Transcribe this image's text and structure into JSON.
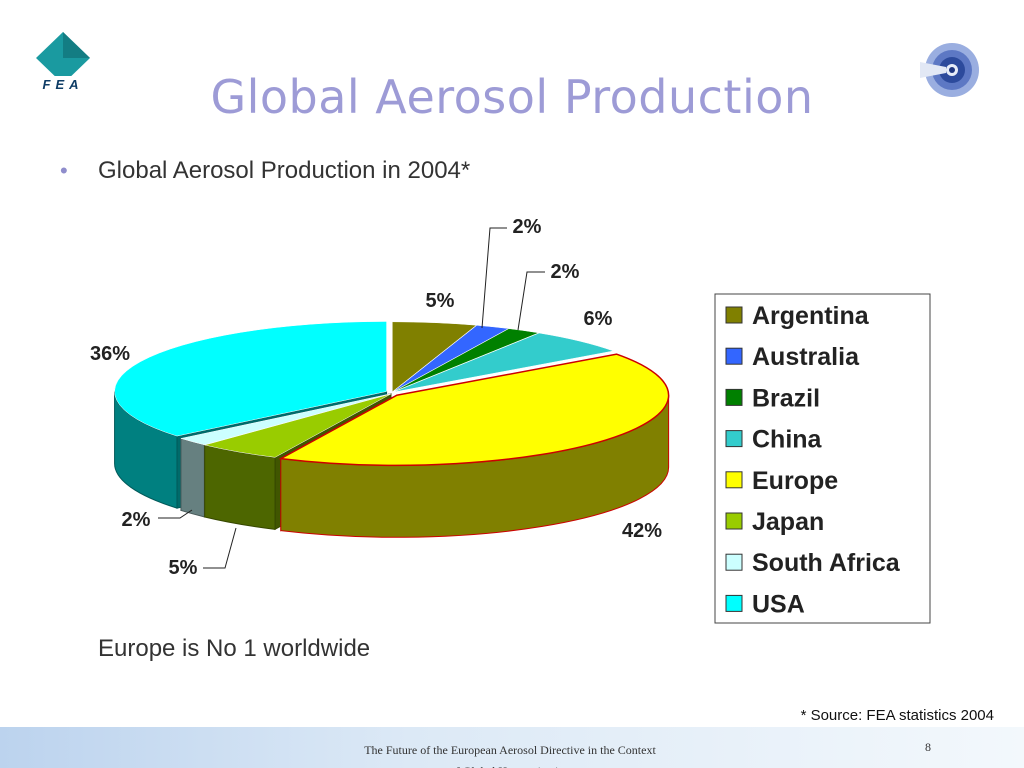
{
  "title": "Global Aerosol Production",
  "subtitle": "Global Aerosol Production in 2004*",
  "bullet": "•",
  "logo_text": "FEA",
  "note": "Europe is No 1 worldwide",
  "source": "* Source: FEA statistics 2004",
  "footer": {
    "text": "The Future of the European Aerosol Directive in the Context of Global Harmonization",
    "page": "8"
  },
  "chart_data": {
    "type": "pie",
    "style": "3d exploded slices",
    "legend_position": "right",
    "slices": [
      {
        "label": "Argentina",
        "value": 5,
        "data_label": "5%",
        "color": "#808000"
      },
      {
        "label": "Australia",
        "value": 2,
        "data_label": "2%",
        "color": "#3366ff"
      },
      {
        "label": "Brazil",
        "value": 2,
        "data_label": "2%",
        "color": "#008000"
      },
      {
        "label": "China",
        "value": 6,
        "data_label": "6%",
        "color": "#33cccc"
      },
      {
        "label": "Europe",
        "value": 42,
        "data_label": "42%",
        "color": "#ffff00"
      },
      {
        "label": "Japan",
        "value": 5,
        "data_label": "5%",
        "color": "#99cc00"
      },
      {
        "label": "South Africa",
        "value": 2,
        "data_label": "2%",
        "color": "#ccffff"
      },
      {
        "label": "USA",
        "value": 36,
        "data_label": "36%",
        "color": "#00ffff"
      }
    ]
  }
}
